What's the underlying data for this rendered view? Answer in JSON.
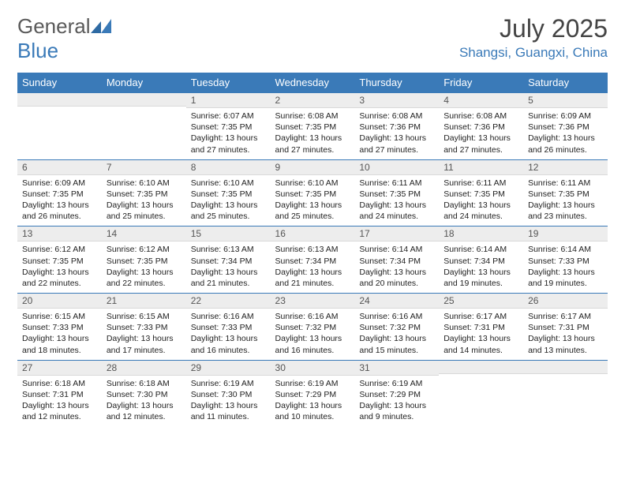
{
  "brand": {
    "name_part1": "General",
    "name_part2": "Blue"
  },
  "title": "July 2025",
  "location": "Shangsi, Guangxi, China",
  "colors": {
    "header_bg": "#3a7ab8",
    "header_text": "#ffffff",
    "daynum_bg": "#ededed",
    "border": "#3a7ab8",
    "brand_gray": "#5a5a5a",
    "brand_blue": "#3a7ab8",
    "body_bg": "#ffffff"
  },
  "daynames": [
    "Sunday",
    "Monday",
    "Tuesday",
    "Wednesday",
    "Thursday",
    "Friday",
    "Saturday"
  ],
  "weeks": [
    [
      null,
      null,
      {
        "n": "1",
        "sr": "6:07 AM",
        "ss": "7:35 PM",
        "dl": "13 hours and 27 minutes."
      },
      {
        "n": "2",
        "sr": "6:08 AM",
        "ss": "7:35 PM",
        "dl": "13 hours and 27 minutes."
      },
      {
        "n": "3",
        "sr": "6:08 AM",
        "ss": "7:36 PM",
        "dl": "13 hours and 27 minutes."
      },
      {
        "n": "4",
        "sr": "6:08 AM",
        "ss": "7:36 PM",
        "dl": "13 hours and 27 minutes."
      },
      {
        "n": "5",
        "sr": "6:09 AM",
        "ss": "7:36 PM",
        "dl": "13 hours and 26 minutes."
      }
    ],
    [
      {
        "n": "6",
        "sr": "6:09 AM",
        "ss": "7:35 PM",
        "dl": "13 hours and 26 minutes."
      },
      {
        "n": "7",
        "sr": "6:10 AM",
        "ss": "7:35 PM",
        "dl": "13 hours and 25 minutes."
      },
      {
        "n": "8",
        "sr": "6:10 AM",
        "ss": "7:35 PM",
        "dl": "13 hours and 25 minutes."
      },
      {
        "n": "9",
        "sr": "6:10 AM",
        "ss": "7:35 PM",
        "dl": "13 hours and 25 minutes."
      },
      {
        "n": "10",
        "sr": "6:11 AM",
        "ss": "7:35 PM",
        "dl": "13 hours and 24 minutes."
      },
      {
        "n": "11",
        "sr": "6:11 AM",
        "ss": "7:35 PM",
        "dl": "13 hours and 24 minutes."
      },
      {
        "n": "12",
        "sr": "6:11 AM",
        "ss": "7:35 PM",
        "dl": "13 hours and 23 minutes."
      }
    ],
    [
      {
        "n": "13",
        "sr": "6:12 AM",
        "ss": "7:35 PM",
        "dl": "13 hours and 22 minutes."
      },
      {
        "n": "14",
        "sr": "6:12 AM",
        "ss": "7:35 PM",
        "dl": "13 hours and 22 minutes."
      },
      {
        "n": "15",
        "sr": "6:13 AM",
        "ss": "7:34 PM",
        "dl": "13 hours and 21 minutes."
      },
      {
        "n": "16",
        "sr": "6:13 AM",
        "ss": "7:34 PM",
        "dl": "13 hours and 21 minutes."
      },
      {
        "n": "17",
        "sr": "6:14 AM",
        "ss": "7:34 PM",
        "dl": "13 hours and 20 minutes."
      },
      {
        "n": "18",
        "sr": "6:14 AM",
        "ss": "7:34 PM",
        "dl": "13 hours and 19 minutes."
      },
      {
        "n": "19",
        "sr": "6:14 AM",
        "ss": "7:33 PM",
        "dl": "13 hours and 19 minutes."
      }
    ],
    [
      {
        "n": "20",
        "sr": "6:15 AM",
        "ss": "7:33 PM",
        "dl": "13 hours and 18 minutes."
      },
      {
        "n": "21",
        "sr": "6:15 AM",
        "ss": "7:33 PM",
        "dl": "13 hours and 17 minutes."
      },
      {
        "n": "22",
        "sr": "6:16 AM",
        "ss": "7:33 PM",
        "dl": "13 hours and 16 minutes."
      },
      {
        "n": "23",
        "sr": "6:16 AM",
        "ss": "7:32 PM",
        "dl": "13 hours and 16 minutes."
      },
      {
        "n": "24",
        "sr": "6:16 AM",
        "ss": "7:32 PM",
        "dl": "13 hours and 15 minutes."
      },
      {
        "n": "25",
        "sr": "6:17 AM",
        "ss": "7:31 PM",
        "dl": "13 hours and 14 minutes."
      },
      {
        "n": "26",
        "sr": "6:17 AM",
        "ss": "7:31 PM",
        "dl": "13 hours and 13 minutes."
      }
    ],
    [
      {
        "n": "27",
        "sr": "6:18 AM",
        "ss": "7:31 PM",
        "dl": "13 hours and 12 minutes."
      },
      {
        "n": "28",
        "sr": "6:18 AM",
        "ss": "7:30 PM",
        "dl": "13 hours and 12 minutes."
      },
      {
        "n": "29",
        "sr": "6:19 AM",
        "ss": "7:30 PM",
        "dl": "13 hours and 11 minutes."
      },
      {
        "n": "30",
        "sr": "6:19 AM",
        "ss": "7:29 PM",
        "dl": "13 hours and 10 minutes."
      },
      {
        "n": "31",
        "sr": "6:19 AM",
        "ss": "7:29 PM",
        "dl": "13 hours and 9 minutes."
      },
      null,
      null
    ]
  ],
  "labels": {
    "sunrise": "Sunrise:",
    "sunset": "Sunset:",
    "daylight": "Daylight:"
  }
}
